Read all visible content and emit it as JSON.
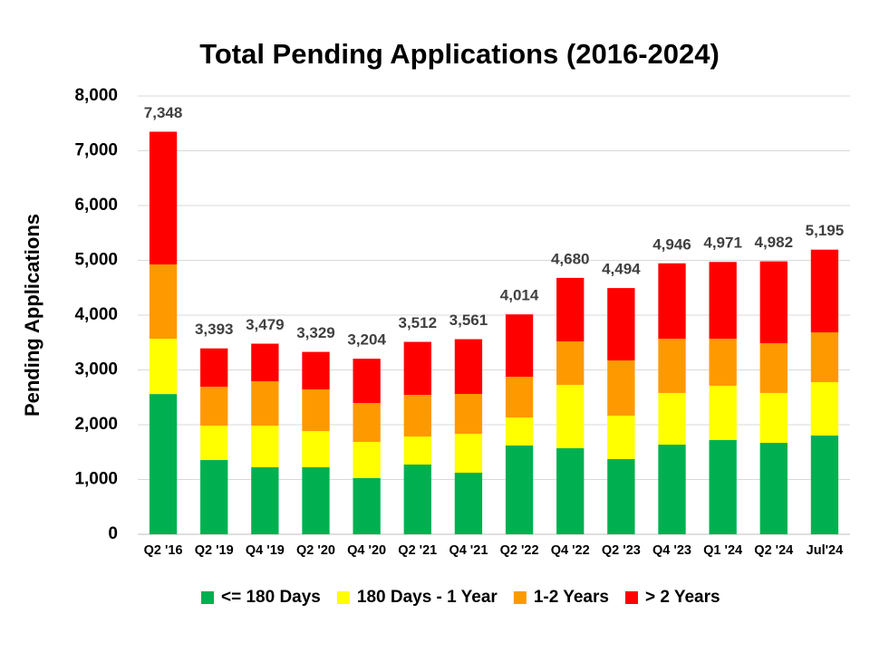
{
  "chart_data": {
    "type": "stacked_bar",
    "title": "Total Pending Applications (2016-2024)",
    "y_label": "Pending Applications",
    "categories": [
      "Q2 '16",
      "Q2 '19",
      "Q4 '19",
      "Q2 '20",
      "Q4 '20",
      "Q2 '21",
      "Q4 '21",
      "Q2 '22",
      "Q4 '22",
      "Q2 '23",
      "Q4 '23",
      "Q1 '24",
      "Q2 '24",
      "Jul'24"
    ],
    "series": [
      {
        "name": "<= 180 Days",
        "color": "#00b050",
        "values": [
          2560,
          1355,
          1223,
          1223,
          1025,
          1273,
          1124,
          1620,
          1570,
          1372,
          1636,
          1719,
          1669,
          1802
        ]
      },
      {
        "name": "180 Days - 1 Year",
        "color": "#ffff00",
        "values": [
          1010,
          628,
          760,
          661,
          661,
          512,
          711,
          512,
          1157,
          793,
          943,
          992,
          910,
          975
        ]
      },
      {
        "name": "1-2 Years",
        "color": "#ff9900",
        "values": [
          1356,
          711,
          810,
          761,
          711,
          760,
          727,
          744,
          794,
          1009,
          991,
          859,
          909,
          909
        ]
      },
      {
        "name": "> 2 Years",
        "color": "#ff0000",
        "values": [
          2422,
          699,
          686,
          684,
          807,
          967,
          999,
          1138,
          1159,
          1320,
          1376,
          1401,
          1494,
          1509
        ]
      }
    ],
    "totals": [
      7348,
      3393,
      3479,
      3329,
      3204,
      3512,
      3561,
      4014,
      4680,
      4494,
      4946,
      4971,
      4982,
      5195
    ],
    "total_labels": [
      "7,348",
      "3,393",
      "3,479",
      "3,329",
      "3,204",
      "3,512",
      "3,561",
      "4,014",
      "4,680",
      "4,494",
      "4,946",
      "4,971",
      "4,982",
      "5,195"
    ],
    "ylim": [
      0,
      8000
    ],
    "yticks": [
      0,
      {
        "value": 1000,
        "label": "1,000"
      },
      {
        "value": 2000,
        "label": "2,000"
      },
      {
        "value": 3000,
        "label": "3,000"
      },
      {
        "value": 4000,
        "label": "4,000"
      },
      {
        "value": 5000,
        "label": "5,000"
      },
      {
        "value": 6000,
        "label": "6,000"
      },
      {
        "value": 7000,
        "label": "7,000"
      },
      {
        "value": 8000,
        "label": "8,000"
      }
    ],
    "grid": true,
    "legend": "bottom"
  }
}
